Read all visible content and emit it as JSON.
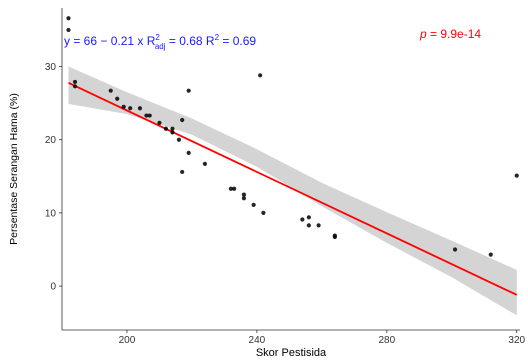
{
  "chart_data": {
    "type": "scatter",
    "title": "",
    "xlabel": "Skor Pestisida",
    "ylabel": "Persentase Serangan Hama (%)",
    "xlim": [
      180,
      321
    ],
    "ylim": [
      -6,
      38
    ],
    "x_ticks": [
      200,
      240,
      280,
      320
    ],
    "y_ticks": [
      0,
      10,
      20,
      30
    ],
    "grid": false,
    "points": [
      {
        "x": 182,
        "y": 36.6
      },
      {
        "x": 182,
        "y": 35.0
      },
      {
        "x": 184,
        "y": 27.9
      },
      {
        "x": 184,
        "y": 27.3
      },
      {
        "x": 195,
        "y": 26.7
      },
      {
        "x": 197,
        "y": 25.6
      },
      {
        "x": 199,
        "y": 24.5
      },
      {
        "x": 201,
        "y": 24.3
      },
      {
        "x": 204,
        "y": 24.3
      },
      {
        "x": 206,
        "y": 23.3
      },
      {
        "x": 207,
        "y": 23.3
      },
      {
        "x": 210,
        "y": 22.3
      },
      {
        "x": 212,
        "y": 21.5
      },
      {
        "x": 214,
        "y": 21.5
      },
      {
        "x": 214,
        "y": 21.0
      },
      {
        "x": 216,
        "y": 20.0
      },
      {
        "x": 217,
        "y": 22.7
      },
      {
        "x": 217,
        "y": 15.6
      },
      {
        "x": 219,
        "y": 26.7
      },
      {
        "x": 219,
        "y": 18.2
      },
      {
        "x": 224,
        "y": 16.7
      },
      {
        "x": 232,
        "y": 13.3
      },
      {
        "x": 233,
        "y": 13.3
      },
      {
        "x": 236,
        "y": 12.5
      },
      {
        "x": 236,
        "y": 12.0
      },
      {
        "x": 239,
        "y": 11.1
      },
      {
        "x": 241,
        "y": 28.8
      },
      {
        "x": 242,
        "y": 10.0
      },
      {
        "x": 254,
        "y": 9.1
      },
      {
        "x": 256,
        "y": 9.4
      },
      {
        "x": 256,
        "y": 8.3
      },
      {
        "x": 259,
        "y": 8.3
      },
      {
        "x": 264,
        "y": 6.9
      },
      {
        "x": 264,
        "y": 6.7
      },
      {
        "x": 301,
        "y": 5.0
      },
      {
        "x": 312,
        "y": 4.3
      },
      {
        "x": 320,
        "y": 15.1
      }
    ],
    "regression": {
      "intercept": 66,
      "slope": -0.21,
      "x_range": [
        182,
        320
      ]
    },
    "confidence_band": [
      {
        "x": 182,
        "lo": 24.9,
        "hi": 30.0
      },
      {
        "x": 200,
        "lo": 23.5,
        "hi": 26.5
      },
      {
        "x": 220,
        "lo": 20.7,
        "hi": 22.9
      },
      {
        "x": 240,
        "lo": 16.3,
        "hi": 18.7
      },
      {
        "x": 260,
        "lo": 10.9,
        "hi": 14.1
      },
      {
        "x": 280,
        "lo": 5.9,
        "hi": 10.1
      },
      {
        "x": 300,
        "lo": 1.2,
        "hi": 6.2
      },
      {
        "x": 320,
        "lo": -4.0,
        "hi": 2.2
      }
    ],
    "annotations": {
      "equation": {
        "prefix": "y = 66 − 0.21 x  R",
        "sup1": "2",
        "sub1": "adj",
        "mid": " = 0.68  R",
        "sup2": "2",
        "suffix": " = 0.69"
      },
      "pvalue": {
        "label": "p",
        "text": " = 9.9e-14"
      }
    },
    "colors": {
      "points": "#000000",
      "line": "#ff0000",
      "band": "#cfcfcf",
      "equation": "#1a1aff",
      "pvalue": "#ff0000"
    }
  }
}
